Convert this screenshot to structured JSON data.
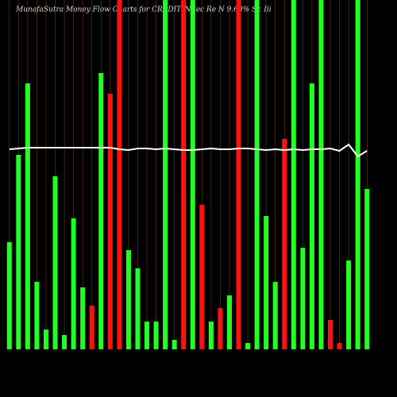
{
  "chart_data": {
    "type": "bar",
    "title": "MunafaSutra  Money Flow  Charts for CREDIT_NSec Re N 9.60% Sr. Iii",
    "categories": [
      null,
      null,
      null,
      null,
      null,
      null,
      null,
      null,
      null,
      null,
      null,
      null,
      null,
      null,
      null,
      null,
      null,
      null,
      null,
      null,
      null,
      null,
      null,
      null,
      null,
      null,
      null,
      null,
      null,
      null,
      null,
      null,
      null,
      null,
      null,
      null,
      null,
      null,
      null,
      null
    ],
    "values": [
      135,
      245,
      335,
      85,
      25,
      218,
      18,
      165,
      78,
      55,
      348,
      322,
      440,
      125,
      102,
      35,
      35,
      440,
      12,
      440,
      440,
      182,
      35,
      52,
      68,
      440,
      8,
      440,
      168,
      85,
      265,
      440,
      128,
      335,
      440,
      37,
      8,
      112,
      440,
      202
    ],
    "colors": [
      "#22ff22",
      "#22ff22",
      "#22ff22",
      "#22ff22",
      "#22ff22",
      "#22ff22",
      "#22ff22",
      "#22ff22",
      "#22ff22",
      "#ff1111",
      "#22ff22",
      "#ff1111",
      "#ff1111",
      "#22ff22",
      "#22ff22",
      "#22ff22",
      "#22ff22",
      "#22ff22",
      "#22ff22",
      "#ff1111",
      "#22ff22",
      "#ff1111",
      "#22ff22",
      "#ff1111",
      "#22ff22",
      "#ff1111",
      "#22ff22",
      "#22ff22",
      "#22ff22",
      "#22ff22",
      "#ff1111",
      "#22ff22",
      "#22ff22",
      "#22ff22",
      "#22ff22",
      "#ff1111",
      "#ff1111",
      "#22ff22",
      "#22ff22",
      "#22ff22"
    ],
    "line": {
      "color": "#ffffff",
      "values": [
        252,
        253,
        254,
        254,
        254,
        254,
        254,
        254,
        254,
        254,
        254,
        254,
        252,
        251,
        253,
        253,
        252,
        253,
        252,
        251,
        251,
        252,
        253,
        252,
        252,
        253,
        253,
        252,
        251,
        252,
        251,
        252,
        251,
        252,
        252,
        253,
        250,
        258,
        243,
        250
      ]
    },
    "ylim": [
      0,
      440
    ],
    "grid_color": "#a0521a"
  }
}
